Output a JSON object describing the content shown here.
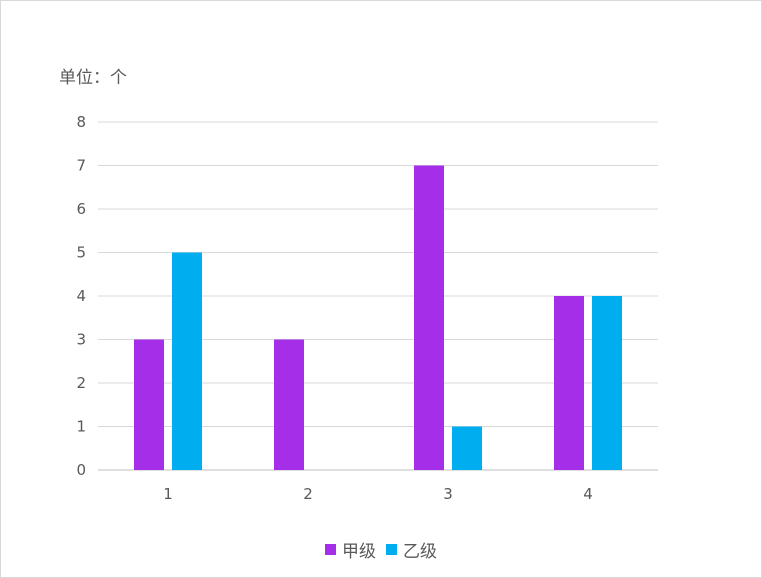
{
  "unit_label": "单位：个",
  "chart_data": {
    "type": "bar",
    "categories": [
      "1",
      "2",
      "3",
      "4"
    ],
    "series": [
      {
        "name": "甲级",
        "values": [
          3,
          3,
          7,
          4
        ],
        "color": "#a52ee8"
      },
      {
        "name": "乙级",
        "values": [
          5,
          0,
          1,
          4
        ],
        "color": "#00adee"
      }
    ],
    "ylim": [
      0,
      8
    ],
    "yticks": [
      "0",
      "1",
      "2",
      "3",
      "4",
      "5",
      "6",
      "7",
      "8"
    ],
    "grid": true,
    "legend_position": "bottom"
  }
}
